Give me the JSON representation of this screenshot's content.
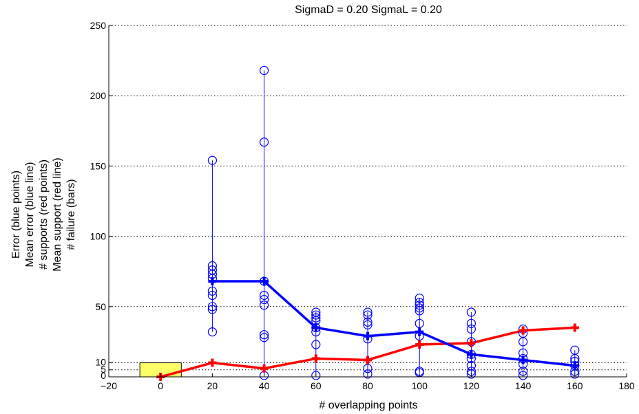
{
  "chart_data": {
    "type": "scatter",
    "title": "SigmaD = 0.20  SigmaL = 0.20",
    "xlabel": "# overlapping points",
    "ylabel_lines": [
      "Error (blue points)",
      "Mean error (blue line)",
      "# supports (red points)",
      "Mean support (red line)",
      "# failure (bars)"
    ],
    "xlim": [
      -20,
      180
    ],
    "ylim": [
      0,
      250
    ],
    "x_ticks": [
      -20,
      0,
      20,
      40,
      60,
      80,
      100,
      120,
      140,
      160,
      180
    ],
    "y_ticks": [
      0,
      5,
      10,
      50,
      100,
      150,
      200,
      250
    ],
    "grid": "dotted horizontal",
    "colors": {
      "error": "#0000ff",
      "support": "#ff0000",
      "failure_bar": "#ffff66"
    },
    "error_points": [
      {
        "x": 20,
        "values": [
          32,
          48,
          50,
          58,
          61,
          70,
          73,
          76,
          79,
          154
        ]
      },
      {
        "x": 40,
        "values": [
          1,
          28,
          30,
          51,
          55,
          58,
          68,
          167,
          218
        ]
      },
      {
        "x": 60,
        "values": [
          1,
          23,
          32,
          35,
          40,
          42,
          44,
          46
        ]
      },
      {
        "x": 80,
        "values": [
          2,
          6,
          27,
          37,
          39,
          44,
          46
        ]
      },
      {
        "x": 100,
        "values": [
          3,
          4,
          29,
          38,
          47,
          49,
          51,
          53,
          56
        ]
      },
      {
        "x": 120,
        "values": [
          2,
          4,
          8,
          13,
          16,
          25,
          34,
          38,
          46
        ]
      },
      {
        "x": 140,
        "values": [
          1,
          4,
          9,
          13,
          17,
          25,
          31,
          34
        ]
      },
      {
        "x": 160,
        "values": [
          2,
          4,
          8,
          11,
          13,
          19
        ]
      }
    ],
    "series": [
      {
        "name": "Mean error (blue line)",
        "x": [
          20,
          40,
          60,
          80,
          100,
          120,
          140,
          160
        ],
        "values": [
          68,
          68,
          35,
          29,
          32,
          16,
          12,
          8
        ]
      },
      {
        "name": "Mean support (red line)",
        "x": [
          0,
          20,
          40,
          60,
          80,
          100,
          120,
          140,
          160
        ],
        "values": [
          0,
          10,
          6,
          13,
          12,
          23,
          24,
          33,
          35
        ]
      }
    ],
    "failure_bars": [
      {
        "x": 0,
        "width": 16,
        "value": 10
      }
    ]
  }
}
